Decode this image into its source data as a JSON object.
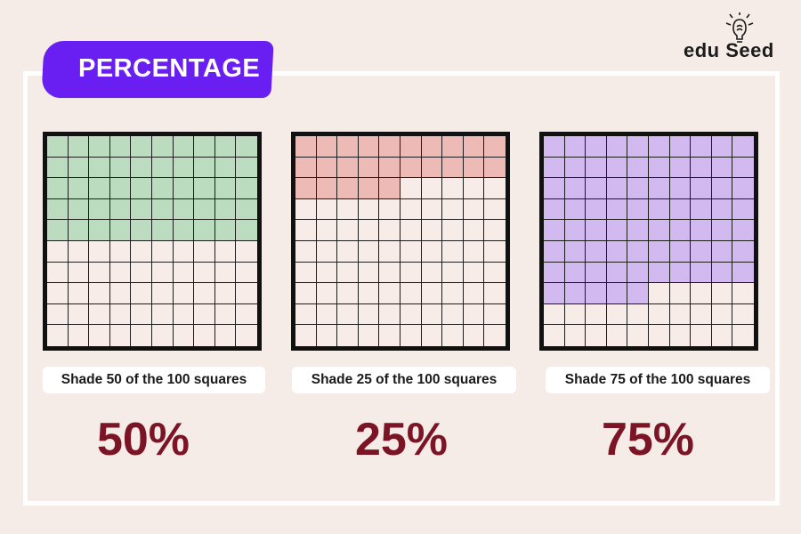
{
  "header": {
    "title": "PERCENTAGE"
  },
  "logo": {
    "text": "edu Seed",
    "icon": "lightbulb-brain-icon"
  },
  "colors": {
    "accent": "#6a1ff2",
    "percent_text": "#7b1526",
    "green": "#bcdcbf",
    "red": "#edbab6",
    "purple": "#d2b9ef",
    "empty": "#f7ece8"
  },
  "panels": [
    {
      "caption": "Shade 50 of the 100 squares",
      "percent": "50%",
      "shaded": 50,
      "color": "#bcdcbf"
    },
    {
      "caption": "Shade 25 of the 100 squares",
      "percent": "25%",
      "shaded": 25,
      "color": "#edbab6"
    },
    {
      "caption": "Shade 75 of the 100 squares",
      "percent": "75%",
      "shaded": 75,
      "color": "#d2b9ef"
    }
  ]
}
